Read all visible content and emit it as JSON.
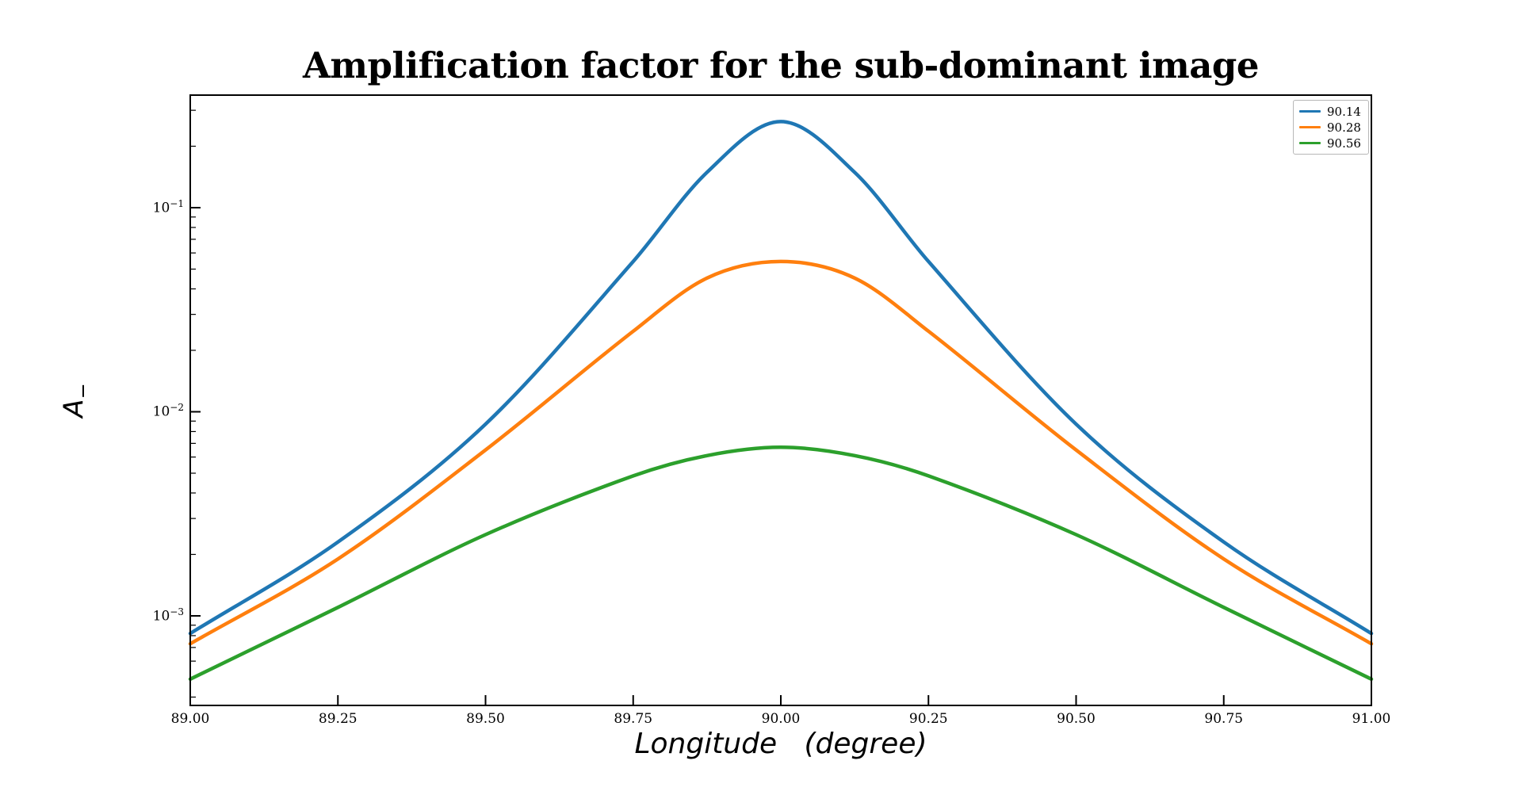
{
  "chart_data": {
    "type": "line",
    "title": "Amplification factor for the sub-dominant image",
    "xlabel": "Longitude (degree)",
    "xlabel_display": "Longitude   (degree)",
    "ylabel": "A_-",
    "ylabel_display": {
      "main": "A",
      "sub": "−"
    },
    "yscale": "log",
    "xscale": "linear",
    "xlim": [
      89.0,
      91.0
    ],
    "ylim": [
      0.000364,
      0.356
    ],
    "grid": false,
    "legend_position": "upper right",
    "x": [
      89.0,
      89.25,
      89.5,
      89.75,
      89.875,
      90.0,
      90.125,
      90.25,
      90.5,
      90.75,
      91.0
    ],
    "series": [
      {
        "name": "90.14",
        "color": "#1f77b4",
        "values": [
          0.00082,
          0.0023,
          0.0087,
          0.0545,
          0.149,
          0.264,
          0.149,
          0.0545,
          0.0087,
          0.0023,
          0.00082
        ]
      },
      {
        "name": "90.28",
        "color": "#ff7f0e",
        "values": [
          0.00073,
          0.0019,
          0.0065,
          0.0248,
          0.0452,
          0.0545,
          0.0452,
          0.0248,
          0.0065,
          0.0019,
          0.00073
        ]
      },
      {
        "name": "90.56",
        "color": "#2ca02c",
        "values": [
          0.00049,
          0.0011,
          0.0025,
          0.00485,
          0.0061,
          0.0067,
          0.0061,
          0.00485,
          0.0025,
          0.0011,
          0.00049
        ]
      }
    ],
    "x_ticks": {
      "values": [
        89.0,
        89.25,
        89.5,
        89.75,
        90.0,
        90.25,
        90.5,
        90.75,
        91.0
      ],
      "labels": [
        "89.00",
        "89.25",
        "89.50",
        "89.75",
        "90.00",
        "90.25",
        "90.50",
        "90.75",
        "91.00"
      ]
    },
    "y_ticks": [
      {
        "value": 0.1,
        "base": "10",
        "exp": "−1"
      },
      {
        "value": 0.01,
        "base": "10",
        "exp": "−2"
      },
      {
        "value": 0.001,
        "base": "10",
        "exp": "−3"
      }
    ],
    "axis_color": "#000000"
  }
}
